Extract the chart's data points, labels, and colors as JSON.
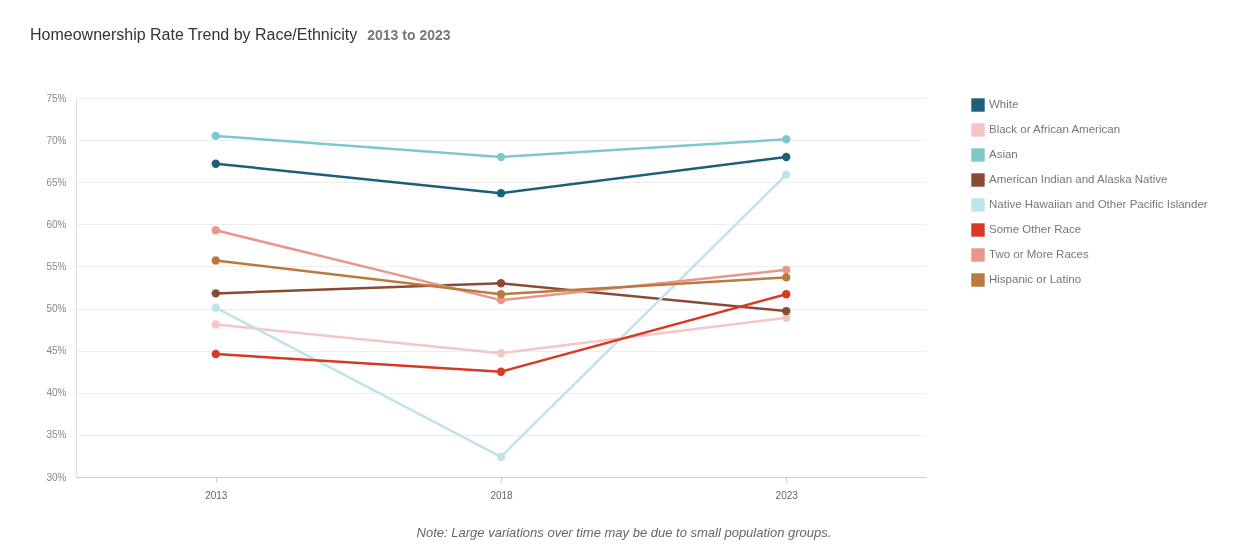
{
  "chart_data": {
    "type": "line",
    "title": "Homeownership Rate Trend by Race/Ethnicity",
    "subtitle": "2013 to 2023",
    "categories": [
      "2013",
      "2018",
      "2023"
    ],
    "series": [
      {
        "name": "White",
        "color": "#1b5f7a",
        "values": [
          67.2,
          63.7,
          68.0
        ]
      },
      {
        "name": "Black or African American",
        "color": "#f5c6c3",
        "values": [
          48.1,
          44.7,
          48.9
        ]
      },
      {
        "name": "Asian",
        "color": "#7ec8cc",
        "values": [
          70.5,
          68.0,
          70.1
        ]
      },
      {
        "name": "American Indian and Alaska Native",
        "color": "#8b4a34",
        "values": [
          51.8,
          53.0,
          49.7
        ]
      },
      {
        "name": "Native Hawaiian and Other Pacific Islander",
        "color": "#bfe3ec",
        "values": [
          50.1,
          32.4,
          65.9
        ]
      },
      {
        "name": "Some Other Race",
        "color": "#d63a24",
        "values": [
          44.6,
          42.5,
          51.7
        ]
      },
      {
        "name": "Two or More Races",
        "color": "#e9968c",
        "values": [
          59.3,
          51.0,
          54.6
        ]
      },
      {
        "name": "Hispanic or Latino",
        "color": "#b87a3e",
        "values": [
          55.7,
          51.7,
          53.7
        ]
      }
    ],
    "ylim": [
      30,
      75
    ],
    "yticks": [
      {
        "value": 30,
        "label": "30%"
      },
      {
        "value": 35,
        "label": "35%"
      },
      {
        "value": 40,
        "label": "40%"
      },
      {
        "value": 45,
        "label": "45%"
      },
      {
        "value": 50,
        "label": "50%"
      },
      {
        "value": 55,
        "label": "55%"
      },
      {
        "value": 60,
        "label": "60%"
      },
      {
        "value": 65,
        "label": "65%"
      },
      {
        "value": 70,
        "label": "70%"
      },
      {
        "value": 75,
        "label": "75%"
      }
    ],
    "grid": "y",
    "legend": "right",
    "marker": "circle",
    "line_style": "solid",
    "annotations": [
      "Note: Large variations over time may be due to small population groups."
    ]
  }
}
